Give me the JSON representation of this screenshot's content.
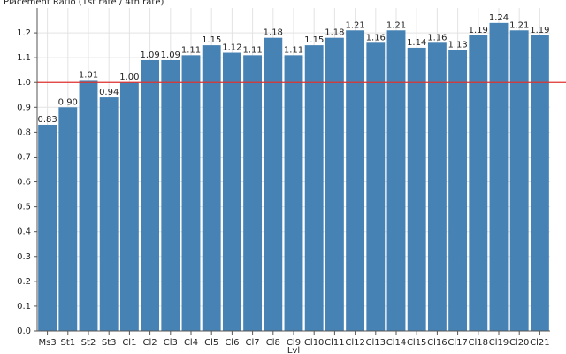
{
  "chart_data": {
    "type": "bar",
    "y_label": "Placement Ratio (1st rate / 4th rate)",
    "x_label": "Lvl",
    "categories": [
      "Ms3",
      "St1",
      "St2",
      "St3",
      "Cl1",
      "Cl2",
      "Cl3",
      "Cl4",
      "Cl5",
      "Cl6",
      "Cl7",
      "Cl8",
      "Cl9",
      "Cl10",
      "Cl11",
      "Cl12",
      "Cl13",
      "Cl14",
      "Cl15",
      "Cl16",
      "Cl17",
      "Cl18",
      "Cl19",
      "Cl20",
      "Cl21"
    ],
    "values": [
      0.83,
      0.9,
      1.01,
      0.94,
      1,
      1.09,
      1.09,
      1.11,
      1.15,
      1.12,
      1.11,
      1.18,
      1.11,
      1.15,
      1.18,
      1.21,
      1.16,
      1.21,
      1.14,
      1.16,
      1.13,
      1.19,
      1.24,
      1.21,
      1.19
    ],
    "value_labels": [
      "0.83",
      "0.90",
      "1.01",
      "0.94",
      "1.00",
      "1.09",
      "1.09",
      "1.11",
      "1.15",
      "1.12",
      "1.11",
      "1.18",
      "1.11",
      "1.15",
      "1.18",
      "1.21",
      "1.16",
      "1.21",
      "1.14",
      "1.16",
      "1.13",
      "1.19",
      "1.24",
      "1.21",
      "1.19"
    ],
    "color": "#4682b4",
    "ylim": [
      0,
      1.3
    ],
    "yticks": [
      {
        "value": 0,
        "label": "0.0"
      },
      0.1,
      0.2,
      0.3,
      0.4,
      0.5,
      0.6,
      0.7,
      0.8,
      0.9,
      {
        "value": 1,
        "label": "1.0"
      },
      1.1,
      1.2
    ],
    "grid": true,
    "reference_line": {
      "value": 1,
      "color": "#e0332f"
    }
  }
}
